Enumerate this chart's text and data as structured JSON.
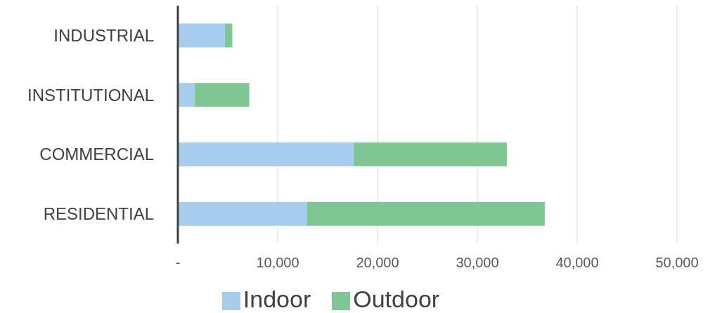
{
  "chart_data": {
    "type": "bar",
    "orientation": "horizontal",
    "stacked": true,
    "categories": [
      "INDUSTRIAL",
      "INSTITUTIONAL",
      "COMMERCIAL",
      "RESIDENTIAL"
    ],
    "series": [
      {
        "name": "Indoor",
        "color": "#a6cdee",
        "values": [
          4700,
          1650,
          17600,
          12900
        ]
      },
      {
        "name": "Outdoor",
        "color": "#7fc794",
        "values": [
          750,
          5500,
          15350,
          23850
        ]
      }
    ],
    "xlim": [
      0,
      50000
    ],
    "xticks": [
      {
        "value": 0,
        "label": "-"
      },
      {
        "value": 10000,
        "label": "10,000"
      },
      {
        "value": 20000,
        "label": "20,000"
      },
      {
        "value": 30000,
        "label": "30,000"
      },
      {
        "value": 40000,
        "label": "40,000"
      },
      {
        "value": 50000,
        "label": "50,000"
      }
    ],
    "grid": "x",
    "legend": "bottom"
  }
}
